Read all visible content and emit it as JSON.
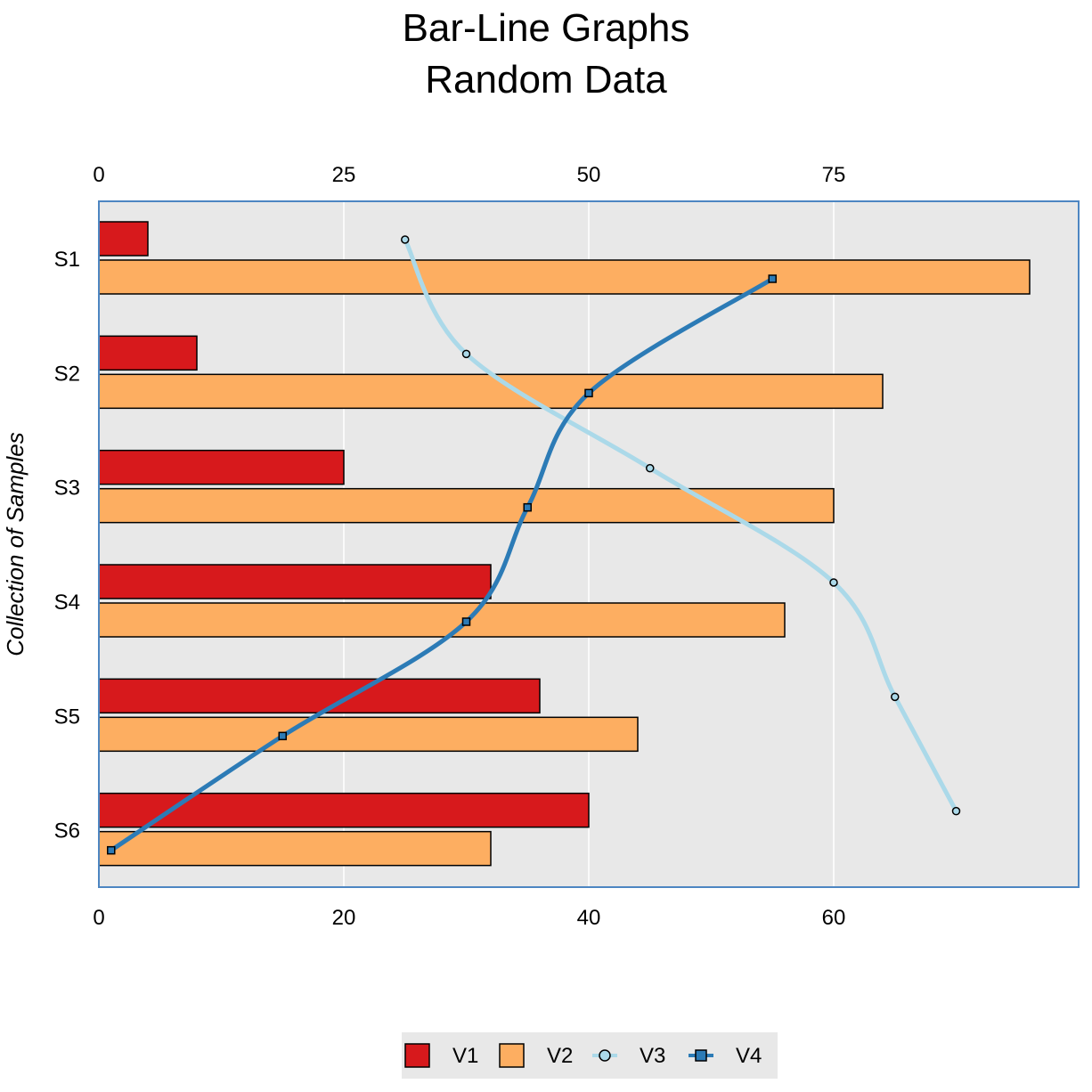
{
  "chart_data": {
    "type": "bar",
    "orientation": "horizontal",
    "title": [
      "Bar-Line Graphs",
      "Random Data"
    ],
    "ylabel": "Collection of Samples",
    "categories": [
      "S1",
      "S2",
      "S3",
      "S4",
      "S5",
      "S6"
    ],
    "bar_axis": {
      "position": "bottom",
      "range": [
        0,
        80
      ],
      "ticks": [
        0,
        20,
        40,
        60
      ]
    },
    "line_axis": {
      "position": "top",
      "range": [
        0,
        100
      ],
      "ticks": [
        0,
        25,
        50,
        75
      ]
    },
    "grid": true,
    "legend_position": "bottom",
    "series": [
      {
        "name": "V1",
        "kind": "bar",
        "axis": "bottom",
        "color": "#d7191c",
        "values": [
          4,
          8,
          20,
          32,
          36,
          40
        ]
      },
      {
        "name": "V2",
        "kind": "bar",
        "axis": "bottom",
        "color": "#fdae61",
        "values": [
          76,
          64,
          60,
          56,
          44,
          32
        ]
      },
      {
        "name": "V3",
        "kind": "line",
        "axis": "top",
        "color": "#abd9e9",
        "marker": "circle",
        "values": [
          31.25,
          37.5,
          56.25,
          75,
          81.25,
          87.5
        ]
      },
      {
        "name": "V4",
        "kind": "line",
        "axis": "top",
        "color": "#2c7bb6",
        "marker": "square",
        "values": [
          68.75,
          50,
          43.75,
          37.5,
          18.75,
          1.25
        ]
      }
    ]
  }
}
